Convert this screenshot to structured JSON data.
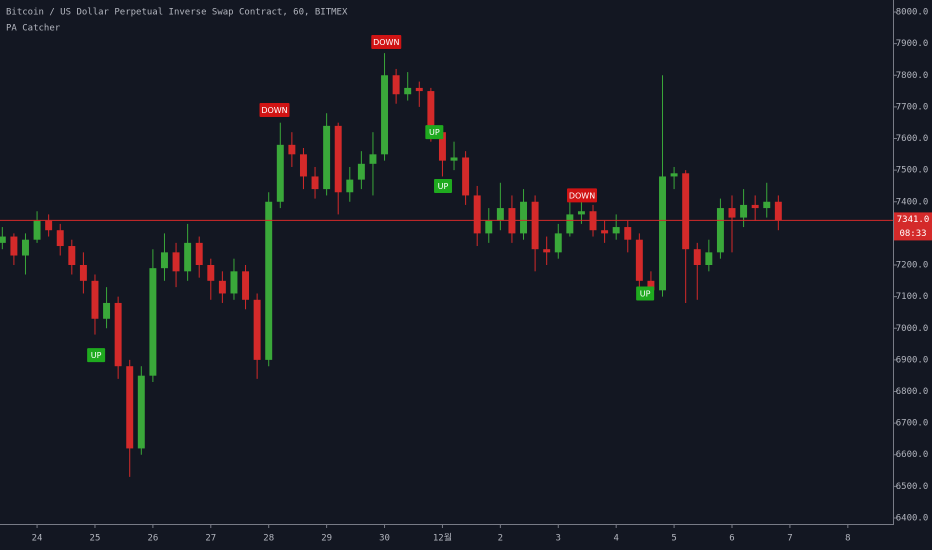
{
  "chart_data": {
    "type": "candlestick",
    "title": "Bitcoin / US Dollar Perpetual Inverse Swap Contract, 60, BITMEX",
    "indicator": "PA Catcher",
    "up_color": "#3aa83a",
    "down_color": "#d42a2a",
    "x": [
      -0.6,
      -0.4,
      -0.2,
      0,
      0.2,
      0.4,
      0.6,
      0.8,
      1.0,
      1.2,
      1.4,
      1.6,
      1.8,
      2.0,
      2.2,
      2.4,
      2.6,
      2.8,
      3.0,
      3.2,
      3.4,
      3.6,
      3.8,
      4.0,
      4.2,
      4.4,
      4.6,
      4.8,
      5.0,
      5.2,
      5.4,
      5.6,
      5.8,
      6.0,
      6.2,
      6.4,
      6.6,
      6.8,
      7.0,
      7.2,
      7.4,
      7.6,
      7.8,
      8.0,
      8.2,
      8.4,
      8.6,
      8.8,
      9.0,
      9.2,
      9.4,
      9.6,
      9.8,
      10.0,
      10.2,
      10.4,
      10.6,
      10.8,
      11.0,
      11.2,
      11.4,
      11.6,
      11.8,
      12.0,
      12.2,
      12.4,
      12.6,
      12.8
    ],
    "open": [
      7270,
      7290,
      7230,
      7280,
      7340,
      7310,
      7260,
      7200,
      7150,
      7030,
      7080,
      6880,
      6620,
      6850,
      7190,
      7240,
      7180,
      7270,
      7200,
      7150,
      7110,
      7180,
      7090,
      6900,
      7400,
      7580,
      7550,
      7480,
      7440,
      7640,
      7430,
      7470,
      7520,
      7550,
      7800,
      7740,
      7760,
      7750,
      7620,
      7530,
      7540,
      7420,
      7300,
      7340,
      7380,
      7300,
      7400,
      7250,
      7240,
      7300,
      7360,
      7370,
      7310,
      7300,
      7320,
      7280,
      7150,
      7120,
      7480,
      7490,
      7250,
      7200,
      7240,
      7380,
      7350,
      7390,
      7380,
      7400
    ],
    "high": [
      7320,
      7300,
      7300,
      7370,
      7360,
      7330,
      7280,
      7240,
      7170,
      7130,
      7100,
      6900,
      6880,
      7250,
      7300,
      7270,
      7330,
      7290,
      7220,
      7180,
      7220,
      7200,
      7110,
      7430,
      7650,
      7620,
      7570,
      7510,
      7680,
      7650,
      7510,
      7560,
      7620,
      7870,
      7820,
      7810,
      7780,
      7760,
      7640,
      7590,
      7560,
      7450,
      7380,
      7460,
      7420,
      7440,
      7420,
      7290,
      7330,
      7400,
      7420,
      7390,
      7340,
      7360,
      7340,
      7300,
      7180,
      7800,
      7510,
      7500,
      7270,
      7280,
      7410,
      7420,
      7440,
      7420,
      7460,
      7420
    ],
    "low": [
      7250,
      7200,
      7170,
      7270,
      7290,
      7230,
      7170,
      7110,
      6980,
      7000,
      6840,
      6530,
      6600,
      6830,
      7150,
      7130,
      7150,
      7160,
      7090,
      7080,
      7090,
      7060,
      6840,
      6880,
      7380,
      7510,
      7440,
      7410,
      7420,
      7360,
      7400,
      7440,
      7420,
      7530,
      7710,
      7720,
      7700,
      7590,
      7480,
      7500,
      7390,
      7260,
      7270,
      7310,
      7270,
      7280,
      7180,
      7200,
      7220,
      7290,
      7330,
      7290,
      7270,
      7280,
      7240,
      7100,
      7090,
      7100,
      7440,
      7080,
      7090,
      7180,
      7220,
      7240,
      7320,
      7340,
      7350,
      7310
    ],
    "close": [
      7290,
      7230,
      7280,
      7340,
      7310,
      7260,
      7200,
      7150,
      7030,
      7080,
      6880,
      6620,
      6850,
      7190,
      7240,
      7180,
      7270,
      7200,
      7150,
      7110,
      7180,
      7090,
      6900,
      7400,
      7580,
      7550,
      7480,
      7440,
      7640,
      7430,
      7470,
      7520,
      7550,
      7800,
      7740,
      7760,
      7750,
      7620,
      7530,
      7540,
      7420,
      7300,
      7340,
      7380,
      7300,
      7400,
      7250,
      7240,
      7300,
      7360,
      7370,
      7310,
      7300,
      7320,
      7280,
      7150,
      7120,
      7480,
      7490,
      7250,
      7200,
      7240,
      7380,
      7350,
      7390,
      7380,
      7400,
      7341
    ],
    "xlim": [
      -0.64,
      14.78
    ],
    "xticks": [
      {
        "value": 0,
        "label": "24"
      },
      {
        "value": 1,
        "label": "25"
      },
      {
        "value": 2,
        "label": "26"
      },
      {
        "value": 3,
        "label": "27"
      },
      {
        "value": 4,
        "label": "28"
      },
      {
        "value": 5,
        "label": "29"
      },
      {
        "value": 6,
        "label": "30"
      },
      {
        "value": 7,
        "label": "12월"
      },
      {
        "value": 8,
        "label": "2"
      },
      {
        "value": 9,
        "label": "3"
      },
      {
        "value": 10,
        "label": "4"
      },
      {
        "value": 11,
        "label": "5"
      },
      {
        "value": 12,
        "label": "6"
      },
      {
        "value": 13,
        "label": "7"
      },
      {
        "value": 14,
        "label": "8"
      }
    ],
    "ylim": [
      6381,
      8038
    ],
    "yticks": [
      {
        "value": 6400,
        "label": "6400.0"
      },
      {
        "value": 6500,
        "label": "6500.0"
      },
      {
        "value": 6600,
        "label": "6600.0"
      },
      {
        "value": 6700,
        "label": "6700.0"
      },
      {
        "value": 6800,
        "label": "6800.0"
      },
      {
        "value": 6900,
        "label": "6900.0"
      },
      {
        "value": 7000,
        "label": "7000.0"
      },
      {
        "value": 7100,
        "label": "7100.0"
      },
      {
        "value": 7200,
        "label": "7200.0"
      },
      {
        "value": 7300,
        "label": "7300.0"
      },
      {
        "value": 7400,
        "label": "7400.0"
      },
      {
        "value": 7500,
        "label": "7500.0"
      },
      {
        "value": 7600,
        "label": "7600.0"
      },
      {
        "value": 7700,
        "label": "7700.0"
      },
      {
        "value": 7800,
        "label": "7800.0"
      },
      {
        "value": 7900,
        "label": "7900.0"
      },
      {
        "value": 8000,
        "label": "8000.0"
      }
    ],
    "grid": false,
    "last_price": {
      "value": 7341,
      "label": "7341.0"
    },
    "countdown": "08:33",
    "signals": [
      {
        "label": "UP",
        "x": 1.02,
        "y": 6915,
        "color": "#1faa1f"
      },
      {
        "label": "DOWN",
        "x": 4.1,
        "y": 7690,
        "color": "#d01414"
      },
      {
        "label": "DOWN",
        "x": 6.03,
        "y": 7905,
        "color": "#d01414"
      },
      {
        "label": "UP",
        "x": 6.86,
        "y": 7620,
        "color": "#1faa1f"
      },
      {
        "label": "UP",
        "x": 7.01,
        "y": 7450,
        "color": "#1faa1f"
      },
      {
        "label": "DOWN",
        "x": 9.41,
        "y": 7420,
        "color": "#d01414"
      },
      {
        "label": "UP",
        "x": 10.5,
        "y": 7110,
        "color": "#1faa1f"
      }
    ]
  }
}
